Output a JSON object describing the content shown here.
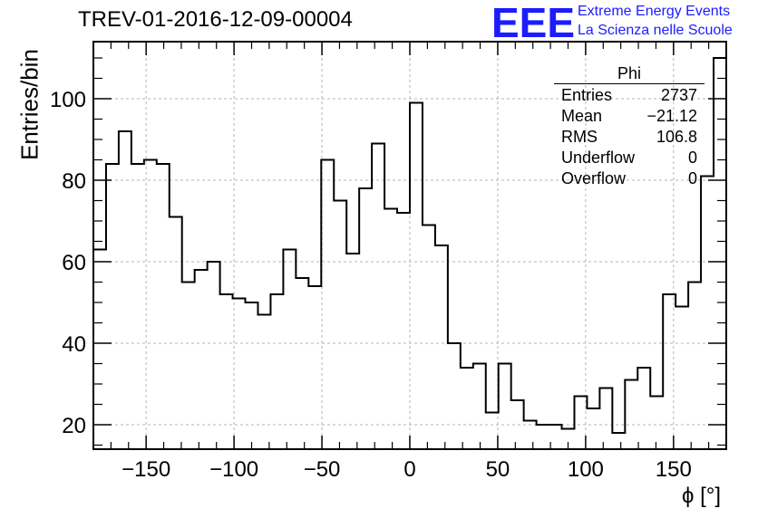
{
  "title": "TREV-01-2016-12-09-00004",
  "logo": {
    "mark": "EEE",
    "line1": "Extreme Energy Events",
    "line2": "La Scienza nelle Scuole",
    "color": "#1c1cff"
  },
  "stats": {
    "name": "Phi",
    "rows": [
      {
        "label": "Entries",
        "value": "2737"
      },
      {
        "label": "Mean",
        "value": "−21.12"
      },
      {
        "label": "RMS",
        "value": "106.8"
      },
      {
        "label": "Underflow",
        "value": "0"
      },
      {
        "label": "Overflow",
        "value": "0"
      }
    ]
  },
  "chart_data": {
    "type": "bar",
    "style": "step-histogram",
    "xlabel": "ϕ [°]",
    "ylabel": "Entries/bin",
    "xlim": [
      -180,
      180
    ],
    "ylim": [
      14,
      114
    ],
    "bin_width": 7.2,
    "xticks": [
      -150,
      -100,
      -50,
      0,
      50,
      100,
      150
    ],
    "xtick_labels": [
      "−150",
      "−100",
      "−50",
      "0",
      "50",
      "100",
      "150"
    ],
    "yticks": [
      20,
      40,
      60,
      80,
      100
    ],
    "grid": true,
    "line_color": "#000000",
    "values": [
      63,
      84,
      92,
      84,
      85,
      84,
      71,
      55,
      58,
      60,
      52,
      51,
      50,
      47,
      52,
      63,
      56,
      54,
      85,
      75,
      62,
      78,
      89,
      73,
      72,
      99,
      69,
      64,
      40,
      34,
      35,
      23,
      35,
      26,
      21,
      20,
      20,
      19,
      27,
      24,
      29,
      18,
      31,
      34,
      27,
      52,
      49,
      55,
      81,
      110
    ]
  }
}
